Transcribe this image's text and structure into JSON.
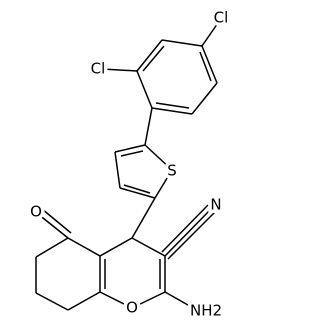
{
  "atoms": [
    {
      "label": "Cl"
    },
    {
      "label": "Cl"
    },
    {
      "label": "S"
    },
    {
      "label": "O"
    },
    {
      "label": "N"
    },
    {
      "label": "O"
    },
    {
      "label": "NH2"
    }
  ]
}
